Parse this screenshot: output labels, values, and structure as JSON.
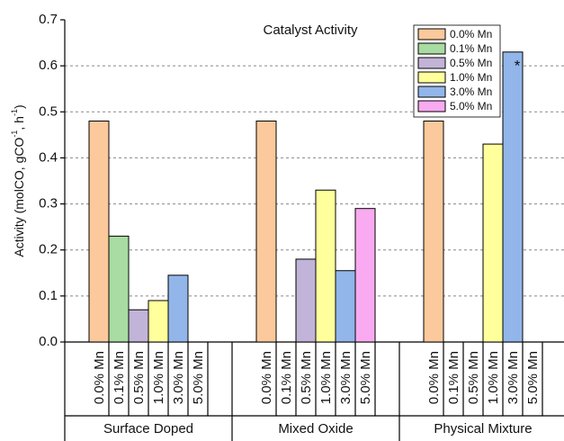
{
  "chart_data": {
    "type": "bar",
    "title": "Catalyst Activity",
    "y_label_parts": [
      "Activity (molCO, gCO",
      "-1",
      ", h",
      "-1",
      ")"
    ],
    "categories": [
      "Surface Doped",
      "Mixed Oxide",
      "Physical Mixture"
    ],
    "series": [
      {
        "name": "0.0% Mn",
        "color": "#fbc99b",
        "values": [
          0.48,
          0.48,
          0.48
        ]
      },
      {
        "name": "0.1% Mn",
        "color": "#a8dca2",
        "values": [
          0.23,
          null,
          null
        ]
      },
      {
        "name": "0.5% Mn",
        "color": "#c2b3d8",
        "values": [
          0.07,
          0.18,
          null
        ]
      },
      {
        "name": "1.0% Mn",
        "color": "#ffff9c",
        "values": [
          0.09,
          0.33,
          0.43
        ]
      },
      {
        "name": "3.0% Mn",
        "color": "#92b6ea",
        "values": [
          0.145,
          0.155,
          0.63
        ]
      },
      {
        "name": "5.0% Mn",
        "color": "#f9aaf1",
        "values": [
          null,
          0.29,
          null
        ]
      }
    ],
    "annotation": "*",
    "ylim": [
      0,
      0.7
    ],
    "yticks": [
      {
        "value": 0,
        "label": "0.0"
      },
      0.1,
      0.2,
      0.3,
      0.4,
      0.5,
      0.6,
      0.7
    ],
    "grid": true,
    "legend": "top-right"
  }
}
